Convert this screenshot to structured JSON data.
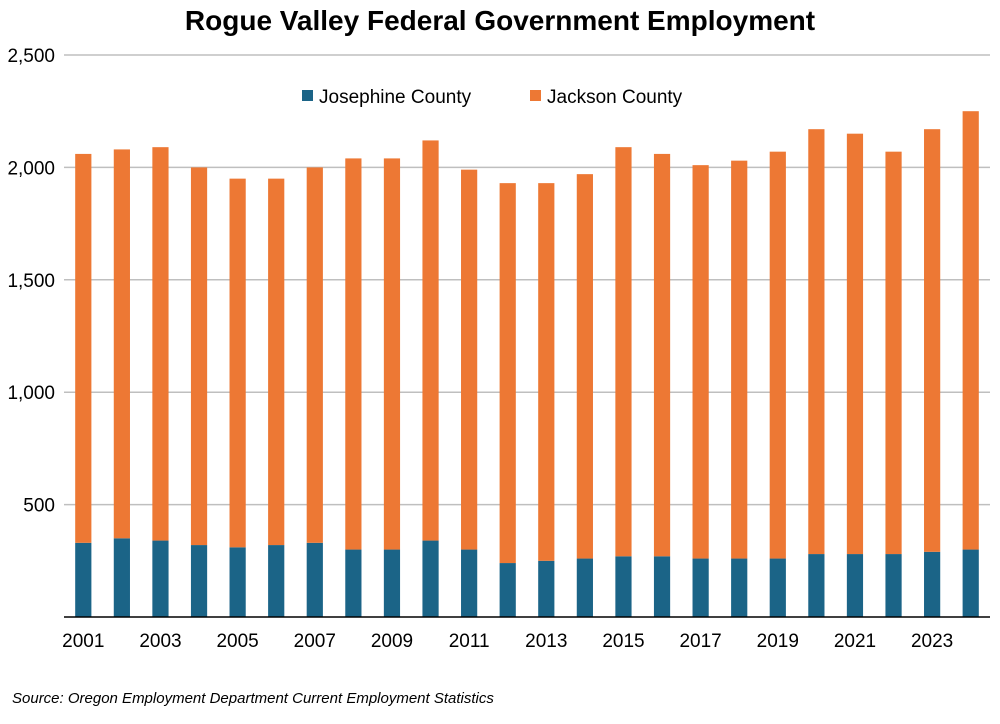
{
  "chart_data": {
    "type": "bar",
    "stacked": true,
    "title": "Rogue Valley Federal Government Employment",
    "xlabel": "",
    "ylabel": "",
    "ylim": [
      0,
      2500
    ],
    "yticks": [
      500,
      1000,
      1500,
      2000,
      2500
    ],
    "ytick_labels": [
      "500",
      "1,000",
      "1,500",
      "2,000",
      "2,500"
    ],
    "grid": true,
    "legend_position": "top-center",
    "categories": [
      "2001",
      "2002",
      "2003",
      "2004",
      "2005",
      "2006",
      "2007",
      "2008",
      "2009",
      "2010",
      "2011",
      "2012",
      "2013",
      "2014",
      "2015",
      "2016",
      "2017",
      "2018",
      "2019",
      "2020",
      "2021",
      "2022",
      "2023",
      "2024"
    ],
    "xtick_labels": [
      "2001",
      "",
      "2003",
      "",
      "2005",
      "",
      "2007",
      "",
      "2009",
      "",
      "2011",
      "",
      "2013",
      "",
      "2015",
      "",
      "2017",
      "",
      "2019",
      "",
      "2021",
      "",
      "2023",
      ""
    ],
    "series": [
      {
        "name": "Josephine County",
        "color": "#1b6487",
        "values": [
          330,
          350,
          340,
          320,
          310,
          320,
          330,
          300,
          300,
          340,
          300,
          240,
          250,
          260,
          270,
          270,
          260,
          260,
          260,
          280,
          280,
          280,
          290,
          300
        ]
      },
      {
        "name": "Jackson County",
        "color": "#ed7834",
        "values": [
          1730,
          1730,
          1750,
          1680,
          1640,
          1630,
          1670,
          1740,
          1740,
          1780,
          1690,
          1690,
          1680,
          1710,
          1820,
          1790,
          1750,
          1770,
          1810,
          1890,
          1870,
          1790,
          1880,
          1950
        ]
      }
    ],
    "source": "Source: Oregon Employment Department Current Employment Statistics"
  }
}
